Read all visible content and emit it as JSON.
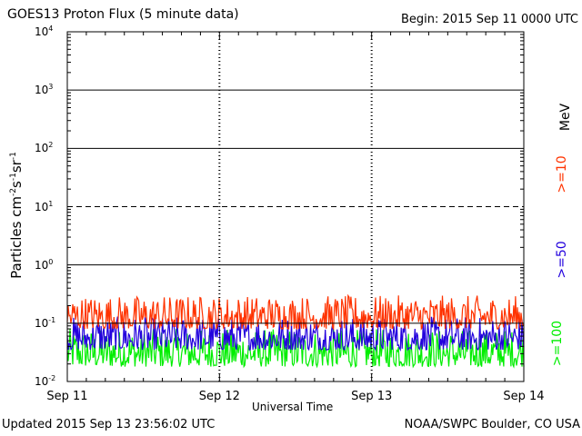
{
  "header": {
    "title": "GOES13 Proton Flux (5 minute data)",
    "begin": "Begin: 2015 Sep 11 0000 UTC"
  },
  "footer": {
    "updated": "Updated 2015 Sep 13 23:56:02 UTC",
    "source": "NOAA/SWPC Boulder, CO USA"
  },
  "axes": {
    "ylabel": {
      "base": "Particles cm",
      "e1": "-2",
      "mid1": "s",
      "e2": "-1",
      "mid2": "sr",
      "e3": "-1"
    },
    "xlabel": "Universal Time",
    "unit": "MeV",
    "ytick_base": "10",
    "ytick_exponents": [
      "4",
      "3",
      "2",
      "1",
      "0",
      "-1",
      "-2"
    ],
    "xticks": [
      "Sep 11",
      "Sep 12",
      "Sep 13",
      "Sep 14"
    ]
  },
  "legend": [
    {
      "label": ">=10",
      "color": "#ff3300"
    },
    {
      "label": ">=50",
      "color": "#2200dd"
    },
    {
      "label": ">=100",
      "color": "#00ee00"
    }
  ],
  "chart_data": {
    "type": "line",
    "title": "GOES13 Proton Flux (5 minute data)",
    "xlabel": "Universal Time",
    "ylabel": "Particles cm^-2 s^-1 sr^-1",
    "yscale": "log",
    "ylim": [
      0.01,
      10000
    ],
    "xlim_days": [
      0,
      3
    ],
    "x_tick_labels": [
      "Sep 11",
      "Sep 12",
      "Sep 13",
      "Sep 14"
    ],
    "series": [
      {
        "name": ">=10 MeV",
        "color": "#ff3300",
        "typical_min": 0.08,
        "typical_max": 0.3
      },
      {
        "name": ">=50 MeV",
        "color": "#2200dd",
        "typical_min": 0.035,
        "typical_max": 0.13
      },
      {
        "name": ">=100 MeV",
        "color": "#00ee00",
        "typical_min": 0.018,
        "typical_max": 0.08
      }
    ],
    "threshold_lines": [
      10,
      0.1
    ],
    "grid": true
  }
}
